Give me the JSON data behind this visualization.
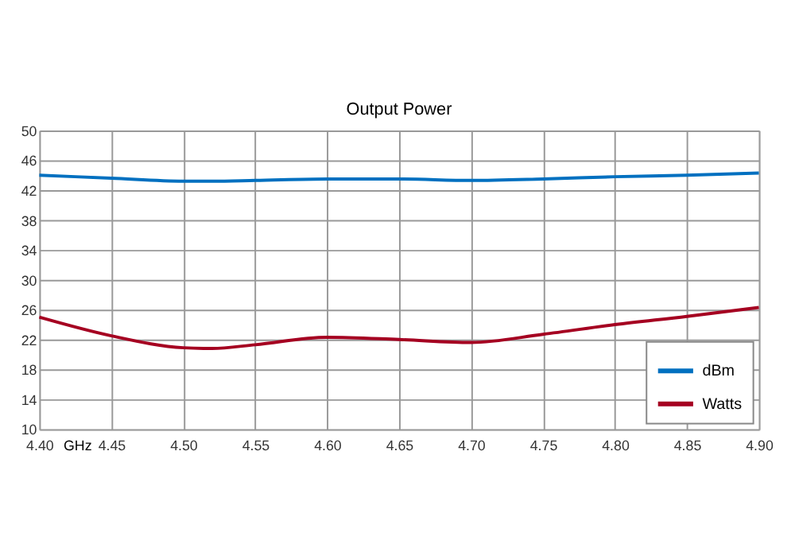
{
  "chart_data": {
    "type": "line",
    "title": "Output Power",
    "xlabel": "GHz",
    "x": [
      4.4,
      4.45,
      4.5,
      4.52,
      4.55,
      4.6,
      4.65,
      4.7,
      4.75,
      4.8,
      4.85,
      4.9
    ],
    "series": [
      {
        "name": "dBm",
        "color": "#0070c0",
        "values": [
          44.0,
          43.6,
          43.2,
          43.2,
          43.3,
          43.5,
          43.5,
          43.3,
          43.5,
          43.8,
          44.0,
          44.3
        ]
      },
      {
        "name": "Watts",
        "color": "#a50021",
        "values": [
          25.0,
          22.5,
          20.9,
          20.8,
          21.3,
          22.3,
          22.0,
          21.6,
          22.7,
          24.0,
          25.1,
          26.3
        ]
      }
    ],
    "xlim": [
      4.4,
      4.9
    ],
    "xticks": [
      {
        "value": 4.4,
        "label": "4.40"
      },
      {
        "value": 4.45,
        "label": "4.45"
      },
      {
        "value": 4.5,
        "label": "4.50"
      },
      {
        "value": 4.55,
        "label": "4.55"
      },
      {
        "value": 4.6,
        "label": "4.60"
      },
      {
        "value": 4.65,
        "label": "4.65"
      },
      {
        "value": 4.7,
        "label": "4.70"
      },
      {
        "value": 4.75,
        "label": "4.75"
      },
      {
        "value": 4.8,
        "label": "4.80"
      },
      {
        "value": 4.85,
        "label": "4.85"
      },
      {
        "value": 4.9,
        "label": "4.90"
      }
    ],
    "ylim": [
      10,
      50
    ],
    "yticks": [
      10,
      14,
      18,
      22,
      26,
      30,
      34,
      38,
      42,
      46,
      50
    ],
    "grid": true,
    "legend": "bottom right",
    "marker": "none",
    "line_style": "solid"
  }
}
